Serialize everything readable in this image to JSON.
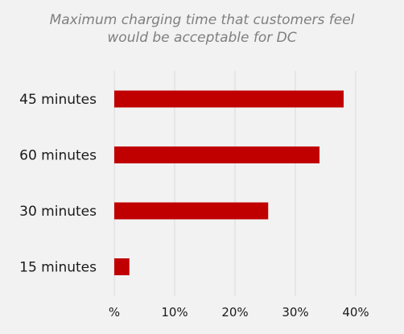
{
  "chart_data": {
    "type": "bar",
    "orientation": "horizontal",
    "title": "Maximum charging time that customers feel would be acceptable for DC",
    "title_lines": [
      "Maximum charging time that customers feel",
      "would be acceptable for DC"
    ],
    "categories": [
      "45 minutes",
      "60 minutes",
      "30 minutes",
      "15 minutes"
    ],
    "values": [
      38,
      34,
      25.5,
      2.5
    ],
    "xlim": [
      0,
      40
    ],
    "xticks": [
      0,
      10,
      20,
      30,
      40
    ],
    "xtick_labels": [
      "%",
      "10%",
      "20%",
      "30%",
      "40%"
    ],
    "grid": true,
    "bar_color": "#c00000",
    "xlabel": "",
    "ylabel": ""
  }
}
